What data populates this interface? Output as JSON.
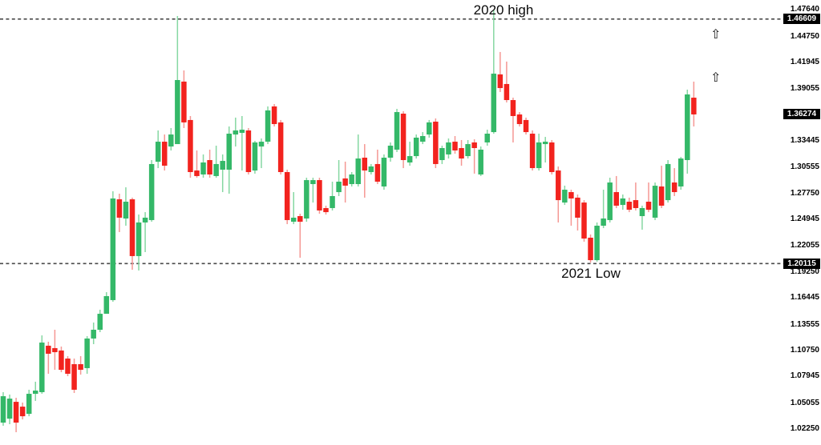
{
  "chart_data": {
    "type": "candlestick",
    "title": "",
    "background_color": "#ffffff",
    "up_color": "#34b868",
    "down_color": "#f2231e",
    "up_wick_color": "#86d7a2",
    "down_wick_color": "#f59793",
    "grid": false,
    "legend": false,
    "y_axis": {
      "side": "right",
      "range": [
        1.0225,
        1.4764
      ],
      "tick_labels": [
        "1.47640",
        "1.44750",
        "1.41945",
        "1.39055",
        "1.33445",
        "1.30555",
        "1.27750",
        "1.24945",
        "1.22055",
        "1.19250",
        "1.16445",
        "1.13555",
        "1.10750",
        "1.07945",
        "1.05055",
        "1.02250"
      ]
    },
    "levels": [
      {
        "name": "2020 high",
        "value": 1.46609,
        "label": "1.46609",
        "line_style": "dashed",
        "line_color": "#4a4a4a",
        "label_bg": "#000000",
        "label_color": "#ffffff"
      },
      {
        "name": "2021 Low",
        "value": 1.20115,
        "label": "1.20115",
        "line_style": "dashed",
        "line_color": "#4a4a4a",
        "label_bg": "#000000",
        "label_color": "#ffffff"
      }
    ],
    "last_price": {
      "value": 1.36274,
      "label": "1.36274",
      "label_bg": "#000000",
      "label_color": "#ffffff"
    },
    "markers": [
      {
        "icon": "up-arrow-icon",
        "glyph": "⇧",
        "price": 1.4486
      },
      {
        "icon": "up-arrow-icon",
        "glyph": "⇧",
        "price": 1.4017
      }
    ],
    "series": [
      {
        "name": "price",
        "ohlc": [
          [
            1.0289,
            1.0619,
            1.0255,
            1.0575
          ],
          [
            1.0332,
            1.0593,
            1.0272,
            1.0549
          ],
          [
            1.0514,
            1.0558,
            1.0185,
            1.0289
          ],
          [
            1.0462,
            1.0506,
            1.0324,
            1.0358
          ],
          [
            1.0384,
            1.0645,
            1.0358,
            1.0601
          ],
          [
            1.0601,
            1.0732,
            1.0524,
            1.0636
          ],
          [
            1.0619,
            1.1234,
            1.0601,
            1.1156
          ],
          [
            1.1122,
            1.1165,
            1.0818,
            1.1035
          ],
          [
            1.1096,
            1.1295,
            1.0861,
            1.1052
          ],
          [
            1.107,
            1.1113,
            1.0835,
            1.0861
          ],
          [
            1.0983,
            1.1009,
            1.0792,
            1.0818
          ],
          [
            1.0922,
            1.0983,
            1.061,
            1.0645
          ],
          [
            1.0922,
            1.1009,
            1.0809,
            1.0861
          ],
          [
            1.0879,
            1.1226,
            1.0818,
            1.12
          ],
          [
            1.12,
            1.1373,
            1.1139,
            1.1295
          ],
          [
            1.1295,
            1.1512,
            1.1269,
            1.1468
          ],
          [
            1.1468,
            1.1702,
            1.1468,
            1.1659
          ],
          [
            1.1616,
            1.2795,
            1.1598,
            1.2717
          ],
          [
            1.2708,
            1.2769,
            1.2353,
            1.2509
          ],
          [
            1.25,
            1.2838,
            1.2422,
            1.2682
          ],
          [
            1.2708,
            1.2726,
            1.1945,
            1.2093
          ],
          [
            1.2093,
            1.2543,
            1.1937,
            1.2457
          ],
          [
            1.2457,
            1.2569,
            1.2136,
            1.2509
          ],
          [
            1.2483,
            1.3133,
            1.2465,
            1.309
          ],
          [
            1.3115,
            1.3454,
            1.3046,
            1.3332
          ],
          [
            1.3332,
            1.341,
            1.302,
            1.3072
          ],
          [
            1.328,
            1.348,
            1.3237,
            1.341
          ],
          [
            1.3306,
            1.4694,
            1.3306,
            1.4
          ],
          [
            1.3983,
            1.4104,
            1.348,
            1.3541
          ],
          [
            1.3567,
            1.361,
            1.2942,
            1.3003
          ],
          [
            1.302,
            1.3237,
            1.2942,
            1.296
          ],
          [
            1.2977,
            1.3194,
            1.2942,
            1.3107
          ],
          [
            1.3133,
            1.3246,
            1.2942,
            1.2977
          ],
          [
            1.296,
            1.3289,
            1.2942,
            1.309
          ],
          [
            1.3029,
            1.3194,
            1.2786,
            1.3124
          ],
          [
            1.3029,
            1.3497,
            1.2769,
            1.3419
          ],
          [
            1.341,
            1.3593,
            1.328,
            1.3454
          ],
          [
            1.3428,
            1.361,
            1.302,
            1.3462
          ],
          [
            1.3454,
            1.348,
            1.2977,
            1.3003
          ],
          [
            1.302,
            1.3341,
            1.2986,
            1.3324
          ],
          [
            1.328,
            1.3367,
            1.3046,
            1.3332
          ],
          [
            1.3332,
            1.3714,
            1.3306,
            1.3671
          ],
          [
            1.3714,
            1.374,
            1.3497,
            1.3523
          ],
          [
            1.3541,
            1.3567,
            1.2977,
            1.3003
          ],
          [
            1.3003,
            1.3029,
            1.2439,
            1.2483
          ],
          [
            1.2465,
            1.2786,
            1.2439,
            1.2509
          ],
          [
            1.2526,
            1.2552,
            1.2075,
            1.2465
          ],
          [
            1.25,
            1.2942,
            1.2465,
            1.2916
          ],
          [
            1.2873,
            1.2942,
            1.2673,
            1.2916
          ],
          [
            1.2916,
            1.2942,
            1.2552,
            1.2587
          ],
          [
            1.2613,
            1.2639,
            1.2543,
            1.2569
          ],
          [
            1.2613,
            1.2899,
            1.2587,
            1.2743
          ],
          [
            1.2786,
            1.3133,
            1.2743,
            1.2899
          ],
          [
            1.2934,
            1.3116,
            1.2673,
            1.2856
          ],
          [
            1.2873,
            1.3003,
            1.2847,
            1.2977
          ],
          [
            1.2873,
            1.341,
            1.2847,
            1.315
          ],
          [
            1.3159,
            1.3306,
            1.2726,
            1.302
          ],
          [
            1.3003,
            1.309,
            1.2977,
            1.3064
          ],
          [
            1.309,
            1.3246,
            1.2873,
            1.2899
          ],
          [
            1.2847,
            1.3194,
            1.2812,
            1.3159
          ],
          [
            1.3159,
            1.3324,
            1.3116,
            1.3289
          ],
          [
            1.3246,
            1.3688,
            1.322,
            1.3653
          ],
          [
            1.3636,
            1.3662,
            1.3046,
            1.3133
          ],
          [
            1.3107,
            1.3332,
            1.3072,
            1.3176
          ],
          [
            1.3176,
            1.341,
            1.315,
            1.3376
          ],
          [
            1.3332,
            1.3436,
            1.3306,
            1.3393
          ],
          [
            1.341,
            1.3567,
            1.3376,
            1.3541
          ],
          [
            1.3549,
            1.3584,
            1.3046,
            1.309
          ],
          [
            1.3133,
            1.3289,
            1.309,
            1.3263
          ],
          [
            1.3194,
            1.3367,
            1.315,
            1.3324
          ],
          [
            1.3332,
            1.3393,
            1.3202,
            1.3237
          ],
          [
            1.3263,
            1.335,
            1.3072,
            1.315
          ],
          [
            1.3176,
            1.335,
            1.315,
            1.3306
          ],
          [
            1.3324,
            1.3358,
            1.2986,
            1.3263
          ],
          [
            1.2977,
            1.328,
            1.296,
            1.3246
          ],
          [
            1.3324,
            1.3462,
            1.3289,
            1.3419
          ],
          [
            1.3436,
            1.4763,
            1.3419,
            1.4069
          ],
          [
            1.4061,
            1.4304,
            1.387,
            1.3913
          ],
          [
            1.3957,
            1.42,
            1.3757,
            1.3783
          ],
          [
            1.3783,
            1.3809,
            1.3324,
            1.361
          ],
          [
            1.3627,
            1.3653,
            1.3497,
            1.3523
          ],
          [
            1.3567,
            1.3593,
            1.341,
            1.3436
          ],
          [
            1.3419,
            1.3454,
            1.302,
            1.3046
          ],
          [
            1.3046,
            1.3419,
            1.302,
            1.3324
          ],
          [
            1.3306,
            1.3384,
            1.3107,
            1.3332
          ],
          [
            1.3324,
            1.335,
            1.2977,
            1.3003
          ],
          [
            1.302,
            1.3063,
            1.2457,
            1.2699
          ],
          [
            1.2673,
            1.2856,
            1.2647,
            1.2812
          ],
          [
            1.2786,
            1.2812,
            1.2422,
            1.2717
          ],
          [
            1.2726,
            1.276,
            1.237,
            1.2509
          ],
          [
            1.2673,
            1.2699,
            1.2249,
            1.2283
          ],
          [
            1.2292,
            1.2327,
            1.2023,
            1.2049
          ],
          [
            1.2049,
            1.2457,
            1.2032,
            1.2422
          ],
          [
            1.2422,
            1.2812,
            1.2396,
            1.25
          ],
          [
            1.2483,
            1.2942,
            1.2457,
            1.289
          ],
          [
            1.2786,
            1.296,
            1.2613,
            1.2639
          ],
          [
            1.2647,
            1.276,
            1.2595,
            1.2717
          ],
          [
            1.2682,
            1.2726,
            1.2569,
            1.2595
          ],
          [
            1.2699,
            1.289,
            1.2587,
            1.2613
          ],
          [
            1.2526,
            1.2639,
            1.2379,
            1.2613
          ],
          [
            1.2682,
            1.289,
            1.2569,
            1.2595
          ],
          [
            1.2509,
            1.289,
            1.2483,
            1.2855
          ],
          [
            1.2847,
            1.3072,
            1.2613,
            1.2639
          ],
          [
            1.2699,
            1.3133,
            1.2673,
            1.309
          ],
          [
            1.289,
            1.3046,
            1.2743,
            1.2786
          ],
          [
            1.2847,
            1.3167,
            1.2812,
            1.315
          ],
          [
            1.3133,
            1.3896,
            1.2986,
            1.3844
          ],
          [
            1.3809,
            1.3983,
            1.3497,
            1.36274
          ]
        ]
      }
    ]
  }
}
